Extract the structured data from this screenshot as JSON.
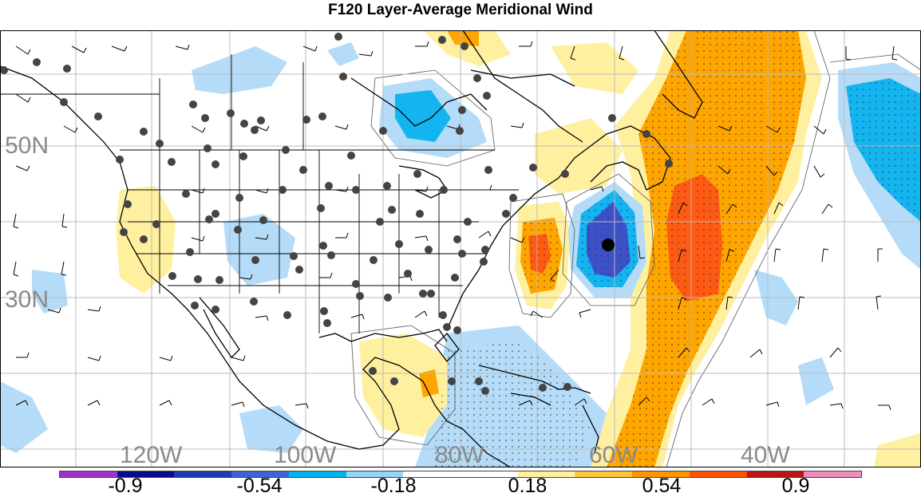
{
  "title": "F120 Layer-Average Meridional Wind",
  "longitude_labels": [
    "120W",
    "100W",
    "80W",
    "60W",
    "40W"
  ],
  "latitude_labels": [
    "50N",
    "30N"
  ],
  "colorbar": {
    "colors": [
      "#a034c8",
      "#0a0a8c",
      "#1e3cb4",
      "#3c64d2",
      "#00b4f0",
      "#96d2fa",
      "#ffffff",
      "#ffffff",
      "#fff0a0",
      "#ffc83c",
      "#ff9600",
      "#ff5000",
      "#be1414",
      "#f08cbe"
    ],
    "tick_labels": [
      "-0.9",
      "-0.54",
      "-0.18",
      "0.18",
      "0.54",
      "0.9"
    ]
  },
  "palette": {
    "ocean": "#ffffff",
    "light_blue": "#b4dcf8",
    "blue": "#14b4f0",
    "dark_blue": "#3c50c8",
    "light_yellow": "#fff0a0",
    "orange": "#ffa500",
    "red_orange": "#ff5a14"
  },
  "marker": {
    "symbol": "cyclone-center"
  }
}
